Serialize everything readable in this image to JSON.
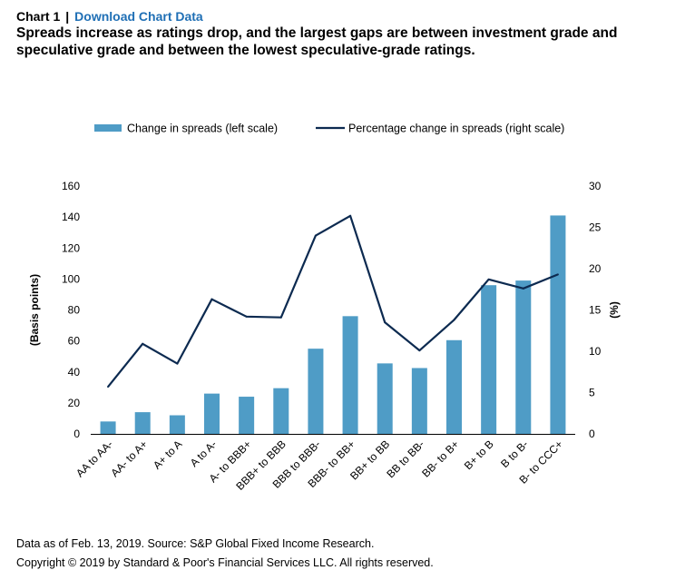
{
  "header": {
    "chart_number": "Chart 1",
    "separator": "|",
    "download_link": "Download Chart Data",
    "title": "Spreads increase as ratings drop, and the largest gaps are between investment grade and speculative grade and between the lowest speculative-grade ratings."
  },
  "footer": {
    "source": "Data as of Feb. 13, 2019. Source: S&P Global Fixed Income Research.",
    "copyright": "Copyright © 2019 by Standard & Poor's Financial Services LLC. All rights reserved."
  },
  "colors": {
    "bar": "#4f9cc6",
    "line": "#0c2a50",
    "axis": "#000000"
  },
  "chart_data": {
    "type": "bar+line",
    "categories": [
      "AA to AA-",
      "AA- to A+",
      "A+ to A",
      "A to A-",
      "A- to BBB+",
      "BBB+ to BBB",
      "BBB to BBB-",
      "BBB- to BB+",
      "BB+ to BB",
      "BB to BB-",
      "BB- to B+",
      "B+ to B",
      "B to B-",
      "B- to CCC+"
    ],
    "series": [
      {
        "name": "Change in spreads (left scale)",
        "type": "bar",
        "axis": "left",
        "values": [
          8,
          14,
          12,
          26,
          24,
          29.5,
          55,
          76,
          45.5,
          42.5,
          60.5,
          96,
          99,
          141
        ]
      },
      {
        "name": "Percentage change in spreads (right scale)",
        "type": "line",
        "axis": "right",
        "values": [
          5.7,
          10.9,
          8.5,
          16.3,
          14.2,
          14.1,
          24.0,
          26.4,
          13.5,
          10.1,
          13.8,
          18.7,
          17.6,
          19.3
        ]
      }
    ],
    "ylabel": "(Basis points)",
    "y2label": "(%)",
    "ylim": [
      0,
      160
    ],
    "y2lim": [
      0,
      30
    ],
    "yticks": [
      "0",
      "20",
      "40",
      "60",
      "80",
      "100",
      "120",
      "140",
      "160"
    ],
    "y2ticks": [
      "0",
      "5",
      "10",
      "15",
      "20",
      "25",
      "30"
    ],
    "legend_position": "top",
    "grid": false
  }
}
